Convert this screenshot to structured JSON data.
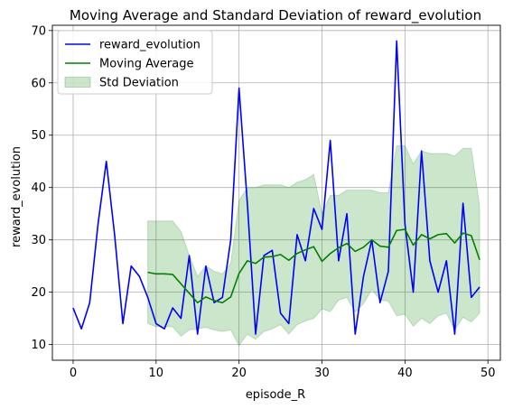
{
  "chart_data": {
    "type": "line",
    "title": "Moving Average and Standard Deviation of reward_evolution",
    "xlabel": "episode_R",
    "ylabel": "reward_evolution",
    "xlim": [
      -2.5,
      51.5
    ],
    "ylim": [
      7,
      71
    ],
    "xticks": [
      0,
      10,
      20,
      30,
      40,
      50
    ],
    "yticks": [
      10,
      20,
      30,
      40,
      50,
      60,
      70
    ],
    "grid": true,
    "legend_position": "top-left",
    "series": [
      {
        "name": "reward_evolution",
        "kind": "line",
        "color": "#0000ff",
        "x": [
          0,
          1,
          2,
          3,
          4,
          5,
          6,
          7,
          8,
          9,
          10,
          11,
          12,
          13,
          14,
          15,
          16,
          17,
          18,
          19,
          20,
          21,
          22,
          23,
          24,
          25,
          26,
          27,
          28,
          29,
          30,
          31,
          32,
          33,
          34,
          35,
          36,
          37,
          38,
          39,
          40,
          41,
          42,
          43,
          44,
          45,
          46,
          47,
          48,
          49
        ],
        "y": [
          17,
          13,
          18,
          33,
          45,
          31,
          14,
          25,
          23,
          19,
          14,
          13,
          17,
          15,
          27,
          12,
          25,
          18,
          19,
          30,
          59,
          37,
          12,
          27,
          28,
          16,
          14,
          31,
          26,
          36,
          32,
          49,
          26,
          35,
          12,
          23,
          30,
          18,
          24,
          68,
          33,
          20,
          47,
          26,
          20,
          26,
          12,
          37,
          19,
          21
        ]
      },
      {
        "name": "Moving Average",
        "kind": "line",
        "color": "#008000",
        "x": [
          9,
          10,
          11,
          12,
          13,
          14,
          15,
          16,
          17,
          18,
          19,
          20,
          21,
          22,
          23,
          24,
          25,
          26,
          27,
          28,
          29,
          30,
          31,
          32,
          33,
          34,
          35,
          36,
          37,
          38,
          39,
          40,
          41,
          42,
          43,
          44,
          45,
          46,
          47,
          48,
          49
        ],
        "y": [
          23.8,
          23.5,
          23.5,
          23.4,
          21.6,
          19.8,
          18.0,
          19.1,
          18.4,
          18.0,
          19.1,
          23.6,
          26.0,
          25.5,
          26.7,
          26.8,
          27.2,
          26.1,
          27.4,
          28.1,
          28.7,
          25.9,
          27.4,
          28.5,
          29.3,
          27.8,
          28.6,
          30.0,
          28.8,
          28.6,
          31.8,
          32.0,
          29.0,
          31.0,
          30.2,
          31.0,
          31.2,
          29.4,
          31.3,
          30.8,
          26.2
        ]
      },
      {
        "name": "Std Deviation",
        "kind": "band",
        "color": "#008000",
        "x": [
          9,
          10,
          11,
          12,
          13,
          14,
          15,
          16,
          17,
          18,
          19,
          20,
          21,
          22,
          23,
          24,
          25,
          26,
          27,
          28,
          29,
          30,
          31,
          32,
          33,
          34,
          35,
          36,
          37,
          38,
          39,
          40,
          41,
          42,
          43,
          44,
          45,
          46,
          47,
          48,
          49
        ],
        "upper": [
          33.6,
          33.6,
          33.6,
          33.6,
          31.6,
          27.0,
          23.0,
          25.0,
          24.0,
          23.5,
          25.5,
          37.5,
          40.0,
          40.0,
          40.5,
          40.5,
          40.5,
          40.0,
          41.0,
          41.5,
          42.5,
          35.0,
          38.5,
          38.5,
          39.5,
          39.5,
          39.5,
          39.5,
          39.0,
          39.0,
          48.0,
          48.0,
          44.5,
          47.0,
          46.5,
          46.5,
          46.5,
          46.0,
          47.5,
          47.5,
          36.5
        ],
        "lower": [
          14.0,
          13.4,
          13.4,
          13.4,
          11.6,
          12.8,
          13.0,
          13.3,
          12.8,
          12.5,
          12.8,
          9.8,
          12.0,
          11.0,
          12.5,
          13.0,
          13.8,
          12.0,
          13.8,
          14.5,
          15.0,
          16.8,
          16.3,
          18.5,
          19.0,
          16.2,
          17.8,
          20.5,
          18.5,
          18.3,
          15.5,
          15.8,
          13.5,
          15.0,
          14.0,
          15.5,
          16.0,
          12.8,
          15.2,
          14.3,
          16.0
        ]
      }
    ]
  }
}
